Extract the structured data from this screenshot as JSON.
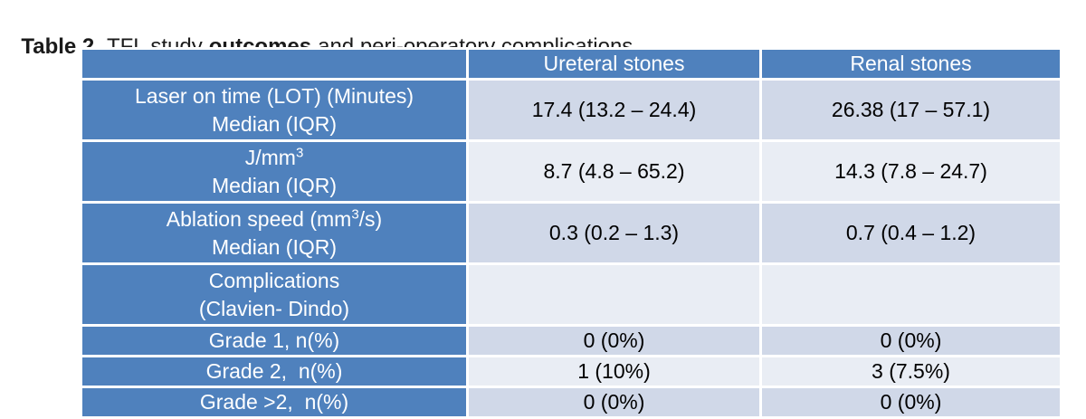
{
  "title": [
    "Table 2.",
    "TFL study",
    "outcomes",
    "and peri-operatory complications"
  ],
  "table": {
    "header": [
      "Ureteral stones",
      "Renal stones"
    ],
    "rows": [
      {
        "label_lines": [
          [
            "Laser on time (LOT) (Minutes)"
          ],
          [
            "Median (IQR)"
          ]
        ],
        "cells": [
          "17.4 (13.2 – 24.4)",
          "26.38 (17 – 57.1)"
        ]
      },
      {
        "label_lines": [
          [
            "J/mm",
            {
              "sup": "3"
            }
          ],
          [
            "Median (IQR)"
          ]
        ],
        "cells": [
          "8.7 (4.8 – 65.2)",
          "14.3 (7.8 – 24.7)"
        ]
      },
      {
        "label_lines": [
          [
            "Ablation speed (mm",
            {
              "sup": "3"
            },
            "/s)"
          ],
          [
            "Median (IQR)"
          ]
        ],
        "cells": [
          "0.3 (0.2 – 1.3)",
          "0.7 (0.4 – 1.2)"
        ]
      },
      {
        "label_lines": [
          [
            "Complications"
          ],
          [
            "(Clavien- Dindo)"
          ]
        ],
        "cells": []
      },
      {
        "label_lines": [
          [
            "Grade 1, n(%)"
          ]
        ],
        "cells": [
          "0 (0%)",
          "0 (0%)"
        ]
      },
      {
        "label_lines": [
          [
            "Grade 2,  n(%)"
          ]
        ],
        "cells": [
          "1 (10%)",
          "3 (7.5%)"
        ]
      },
      {
        "label_lines": [
          [
            "Grade >2,  n(%)"
          ]
        ],
        "cells": [
          "0 (0%)",
          "0 (0%)"
        ]
      }
    ]
  }
}
